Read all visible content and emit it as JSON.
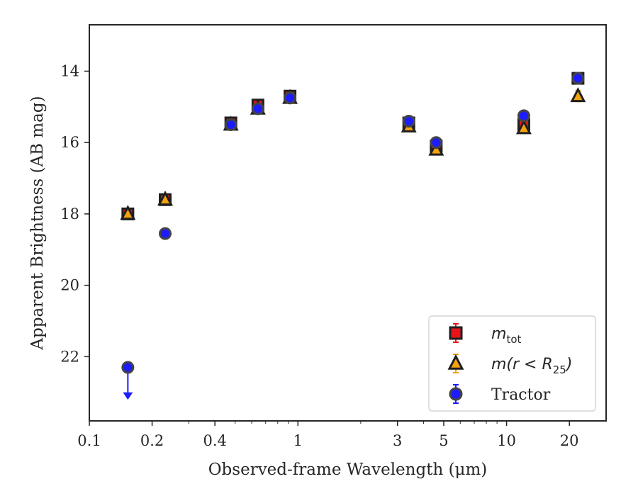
{
  "chart_data": {
    "type": "scatter",
    "xlabel": "Observed-frame Wavelength (μm)",
    "ylabel": "Apparent Brightness (AB mag)",
    "xscale": "log",
    "xlim": [
      0.1,
      30
    ],
    "ylim": [
      23.8,
      12.7
    ],
    "y_inverted": true,
    "x_ticks": [
      0.1,
      0.2,
      0.4,
      1,
      3,
      5,
      10,
      20
    ],
    "x_tick_labels": [
      "0.1",
      "0.2",
      "0.4",
      "1",
      "3",
      "5",
      "10",
      "20"
    ],
    "y_ticks": [
      14,
      16,
      18,
      20,
      22
    ],
    "y_tick_labels": [
      "14",
      "16",
      "18",
      "20",
      "22"
    ],
    "grid": false,
    "legend_position": "lower-right",
    "series": [
      {
        "label_main": "m",
        "label_sub": "tot",
        "marker": "square",
        "color": "#e8141a",
        "edge": "#1f1f1f",
        "x": [
          0.153,
          0.231,
          0.477,
          0.643,
          0.916,
          3.4,
          4.6,
          12.1,
          22.0
        ],
        "y": [
          18.0,
          17.6,
          15.45,
          14.95,
          14.7,
          15.45,
          16.1,
          15.5,
          14.2
        ],
        "yerr": [
          0.05,
          0.05,
          0.1,
          0.15,
          0.12,
          0.05,
          0.05,
          0.15,
          0.05
        ]
      },
      {
        "label_main": "m(r < R",
        "label_sub": "25",
        "label_tail": ")",
        "marker": "triangle",
        "color": "#f2a20c",
        "edge": "#1f1f1f",
        "x": [
          0.153,
          0.231,
          0.477,
          0.643,
          0.916,
          3.4,
          4.6,
          12.1,
          22.0
        ],
        "y": [
          18.0,
          17.6,
          15.5,
          15.05,
          14.75,
          15.55,
          16.2,
          15.6,
          14.7
        ],
        "yerr": [
          0.05,
          0.05,
          0.05,
          0.05,
          0.05,
          0.05,
          0.05,
          0.05,
          0.15
        ]
      },
      {
        "label": "Tractor",
        "marker": "circle",
        "color": "#1c1cff",
        "edge": "#444444",
        "x": [
          0.153,
          0.231,
          0.477,
          0.643,
          0.916,
          3.4,
          4.6,
          12.1,
          22.0
        ],
        "y": [
          22.3,
          18.55,
          15.5,
          15.05,
          14.75,
          15.4,
          16.0,
          15.25,
          14.2
        ],
        "yerr": [
          0.05,
          0.05,
          0.05,
          0.05,
          0.05,
          0.05,
          0.05,
          0.12,
          0.05
        ],
        "upper_limit_index": 0
      }
    ]
  }
}
